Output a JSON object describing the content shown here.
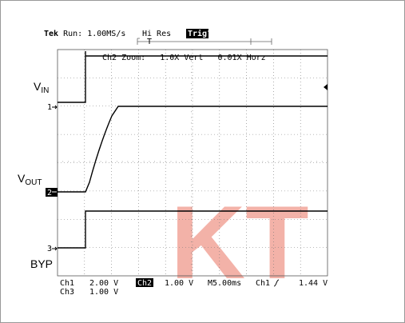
{
  "header": {
    "brand": "Tek",
    "run": "Run: 1.00MS/s",
    "mode": "Hi Res",
    "trig": "Trig?",
    "trigger_bar": "T"
  },
  "zoom": "Ch2 Zoom:   1.0X Vert   0.01X Horz",
  "labels": {
    "vin": {
      "main": "V",
      "sub": "IN"
    },
    "vout": {
      "main": "V",
      "sub": "OUT"
    },
    "byp": "BYP"
  },
  "markers": [
    "1",
    "2",
    "3"
  ],
  "footer": {
    "ch1": "Ch1",
    "ch1_scale": "2.00 V",
    "ch2": "Ch2",
    "ch2_scale": "1.00 V",
    "time": "M5.00ms",
    "trig_src": "Ch1",
    "trig_level": "1.44 V",
    "ch3": "Ch3",
    "ch3_scale": "1.00 V"
  },
  "watermark": "KT"
}
